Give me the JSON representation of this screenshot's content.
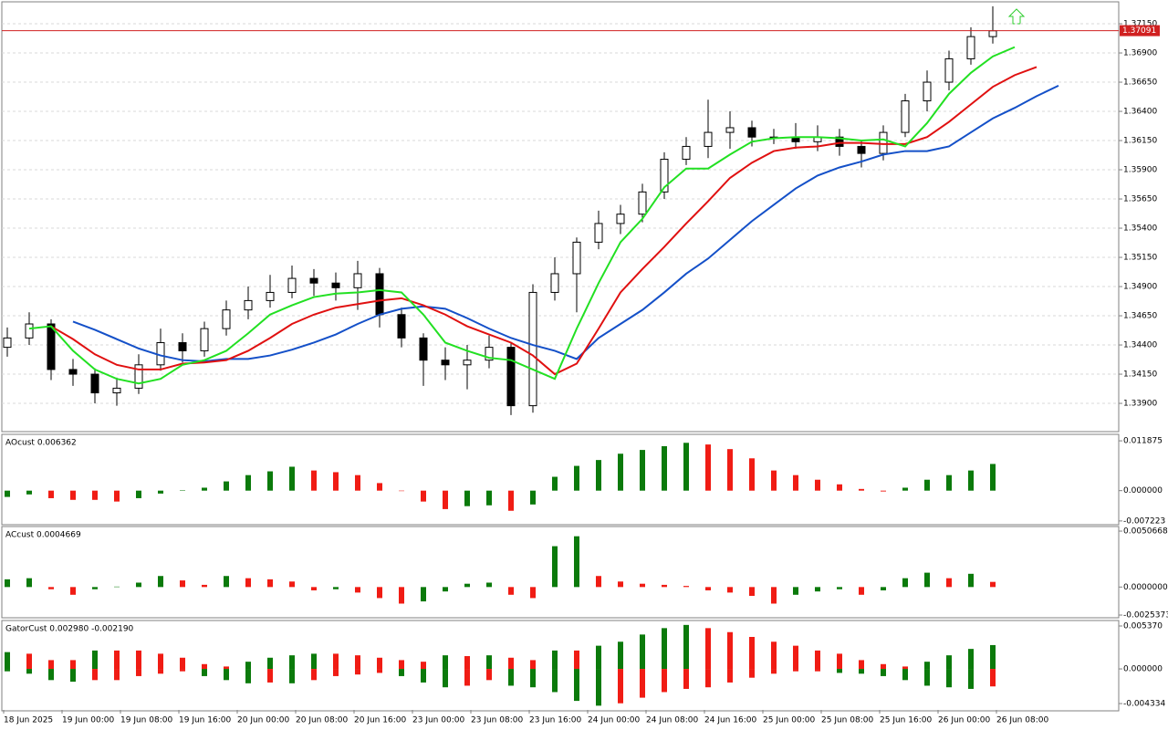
{
  "chart_data": [
    {
      "type": "candlestick",
      "open": [
        1.3438,
        1.3446,
        1.3458,
        1.3419,
        1.3415,
        1.3399,
        1.3403,
        1.3423,
        1.3442,
        1.3435,
        1.3454,
        1.347,
        1.3478,
        1.3485,
        1.3497,
        1.3493,
        1.3489,
        1.3501,
        1.3466,
        1.3446,
        1.3427,
        1.3423,
        1.3427,
        1.3438,
        1.3388,
        1.3485,
        1.3501,
        1.3528,
        1.3544,
        1.3552,
        1.3571,
        1.3599,
        1.361,
        1.3622,
        1.3626,
        1.3618,
        1.3618,
        1.3614,
        1.3618,
        1.361,
        1.3604,
        1.3622,
        1.3649,
        1.3665,
        1.3685,
        1.3704
      ],
      "high": [
        1.3455,
        1.3468,
        1.3462,
        1.3428,
        1.342,
        1.3412,
        1.3432,
        1.3454,
        1.345,
        1.346,
        1.3478,
        1.349,
        1.35,
        1.3508,
        1.3505,
        1.3502,
        1.3512,
        1.3506,
        1.3472,
        1.345,
        1.3438,
        1.344,
        1.3448,
        1.3442,
        1.3492,
        1.3515,
        1.3532,
        1.3555,
        1.356,
        1.3578,
        1.3605,
        1.3618,
        1.365,
        1.364,
        1.3632,
        1.3625,
        1.363,
        1.3628,
        1.3625,
        1.3615,
        1.3628,
        1.3655,
        1.3675,
        1.3692,
        1.3712,
        1.373
      ],
      "low": [
        1.343,
        1.344,
        1.341,
        1.3405,
        1.339,
        1.3388,
        1.3398,
        1.3418,
        1.3425,
        1.343,
        1.3448,
        1.3462,
        1.3472,
        1.348,
        1.3482,
        1.3478,
        1.347,
        1.3455,
        1.3438,
        1.3405,
        1.341,
        1.3402,
        1.342,
        1.338,
        1.3382,
        1.3478,
        1.3468,
        1.3522,
        1.3535,
        1.3545,
        1.3565,
        1.3594,
        1.36,
        1.3608,
        1.361,
        1.3612,
        1.3608,
        1.3606,
        1.3602,
        1.3592,
        1.3598,
        1.3618,
        1.364,
        1.3658,
        1.368,
        1.3698
      ],
      "close": [
        1.3446,
        1.3458,
        1.3419,
        1.3415,
        1.3399,
        1.3403,
        1.3423,
        1.3442,
        1.3435,
        1.3454,
        1.347,
        1.3478,
        1.3485,
        1.3497,
        1.3493,
        1.3489,
        1.3501,
        1.3466,
        1.3446,
        1.3427,
        1.3423,
        1.3427,
        1.3438,
        1.3388,
        1.3485,
        1.3501,
        1.3528,
        1.3544,
        1.3552,
        1.3571,
        1.3599,
        1.361,
        1.3622,
        1.3626,
        1.3618,
        1.3618,
        1.3614,
        1.3618,
        1.361,
        1.3604,
        1.3622,
        1.3649,
        1.3665,
        1.3685,
        1.3704,
        1.3709
      ],
      "up_color": "#ffffff",
      "down_color": "#000000",
      "series": [
        {
          "color": "#1450c8",
          "shift": 3,
          "values": [
            1.346,
            1.3453,
            1.3445,
            1.3437,
            1.3431,
            1.3427,
            1.3426,
            1.3428,
            1.3428,
            1.3431,
            1.3436,
            1.3442,
            1.3449,
            1.3458,
            1.3466,
            1.3471,
            1.3473,
            1.3471,
            1.3463,
            1.3454,
            1.3446,
            1.344,
            1.3435,
            1.3428,
            1.3446,
            1.3458,
            1.347,
            1.3485,
            1.3501,
            1.3514,
            1.353,
            1.3546,
            1.356,
            1.3574,
            1.3585,
            1.3592,
            1.3597,
            1.3603,
            1.3606,
            1.3606,
            1.361,
            1.3622,
            1.3634,
            1.3643,
            1.3653,
            1.3662
          ]
        },
        {
          "color": "#e01010",
          "shift": 2,
          "values": [
            1.3456,
            1.3445,
            1.3432,
            1.3423,
            1.3419,
            1.3419,
            1.3424,
            1.3425,
            1.3427,
            1.3435,
            1.3446,
            1.3458,
            1.3466,
            1.3472,
            1.3475,
            1.3478,
            1.348,
            1.3474,
            1.3466,
            1.3456,
            1.3449,
            1.3442,
            1.3431,
            1.3415,
            1.3424,
            1.3454,
            1.3485,
            1.3505,
            1.3524,
            1.3544,
            1.3563,
            1.3583,
            1.3596,
            1.3606,
            1.3609,
            1.361,
            1.3613,
            1.3613,
            1.3612,
            1.3612,
            1.3618,
            1.3631,
            1.3646,
            1.3661,
            1.3671,
            1.3678
          ]
        },
        {
          "color": "#22e022",
          "shift": 1,
          "values": [
            1.3454,
            1.3456,
            1.3435,
            1.3419,
            1.3411,
            1.3407,
            1.3411,
            1.3423,
            1.3427,
            1.3435,
            1.345,
            1.3466,
            1.3474,
            1.3481,
            1.3484,
            1.3485,
            1.3487,
            1.3485,
            1.3466,
            1.3442,
            1.3435,
            1.3429,
            1.3427,
            1.3419,
            1.3411,
            1.3454,
            1.3493,
            1.3528,
            1.3548,
            1.3575,
            1.3591,
            1.3591,
            1.3603,
            1.3614,
            1.3617,
            1.3618,
            1.3618,
            1.3617,
            1.3615,
            1.3616,
            1.361,
            1.363,
            1.3655,
            1.3673,
            1.3687,
            1.3695
          ]
        }
      ],
      "current_price": {
        "value": 1.37091,
        "label": "1.37091"
      },
      "ylim": [
        1.33666,
        1.3733
      ],
      "yticks": [
        {
          "value": 1.339,
          "label": "1.33900"
        },
        {
          "value": 1.3415,
          "label": "1.34150"
        },
        {
          "value": 1.344,
          "label": "1.34400"
        },
        {
          "value": 1.3465,
          "label": "1.34650"
        },
        {
          "value": 1.349,
          "label": "1.34900"
        },
        {
          "value": 1.3515,
          "label": "1.35150"
        },
        {
          "value": 1.354,
          "label": "1.35400"
        },
        {
          "value": 1.3565,
          "label": "1.35650"
        },
        {
          "value": 1.359,
          "label": "1.35900"
        },
        {
          "value": 1.3615,
          "label": "1.36150"
        },
        {
          "value": 1.364,
          "label": "1.36400"
        },
        {
          "value": 1.3665,
          "label": "1.36650"
        },
        {
          "value": 1.369,
          "label": "1.36900"
        },
        {
          "value": 1.3715,
          "label": "1.37150"
        }
      ],
      "grid": true,
      "x_labels": [
        "18 Jun 2025",
        "19 Jun 00:00",
        "19 Jun 08:00",
        "19 Jun 16:00",
        "20 Jun 00:00",
        "20 Jun 08:00",
        "20 Jun 16:00",
        "23 Jun 00:00",
        "23 Jun 08:00",
        "23 Jun 16:00",
        "24 Jun 00:00",
        "24 Jun 08:00",
        "24 Jun 16:00",
        "25 Jun 00:00",
        "25 Jun 08:00",
        "25 Jun 16:00",
        "26 Jun 00:00",
        "26 Jun 08:00"
      ]
    },
    {
      "type": "histogram",
      "title": "AOcust 0.006362",
      "up_color": "#0b7a0b",
      "down_color": "#f01c14",
      "values": [
        -0.0015,
        -0.0009,
        -0.0018,
        -0.0022,
        -0.0022,
        -0.0026,
        -0.0018,
        -0.0007,
        0.0001,
        0.0007,
        0.0022,
        0.0037,
        0.0046,
        0.0057,
        0.0048,
        0.0044,
        0.0037,
        0.0018,
        0,
        -0.0026,
        -0.0044,
        -0.0037,
        -0.0035,
        -0.0048,
        -0.0033,
        0.0033,
        0.0059,
        0.0073,
        0.0088,
        0.0097,
        0.0106,
        0.0114,
        0.011,
        0.0099,
        0.0077,
        0.0048,
        0.0037,
        0.0026,
        0.0015,
        0.0004,
        -0.0002,
        0.0007,
        0.0026,
        0.0037,
        0.0048,
        0.006362
      ],
      "ylim": [
        -0.0079,
        0.0132
      ],
      "yticks": [
        0.011875,
        {
          "value": 0,
          "label": "0.000000"
        },
        -0.007223
      ]
    },
    {
      "type": "histogram",
      "title": "ACcust 0.0004669",
      "up_color": "#0b7a0b",
      "down_color": "#f01c14",
      "values": [
        0.0007,
        0.0008,
        -0.0002,
        -0.0007,
        -0.0002,
        4e-05,
        0.0004,
        0.001,
        0.0006,
        0.0002,
        0.001,
        0.0008,
        0.0007,
        0.0005,
        -0.0003,
        -0.0002,
        -0.0005,
        -0.001,
        -0.0015,
        -0.0013,
        -0.0004,
        0.0003,
        0.0004,
        -0.0007,
        -0.001,
        0.0037,
        0.0046,
        0.001,
        0.0005,
        0.0003,
        0.0002,
        0.0001,
        -0.0003,
        -0.0005,
        -0.0008,
        -0.0015,
        -0.0007,
        -0.0004,
        -0.0002,
        -0.0007,
        -0.0003,
        0.0008,
        0.0013,
        0.0008,
        0.0012,
        0.0004669
      ],
      "ylim": [
        -0.0027,
        0.0054
      ],
      "yticks": [
        0.0050668,
        {
          "value": 0,
          "label": "0.0000000"
        },
        -0.0025373
      ]
    },
    {
      "type": "gator",
      "title": "GatorCust 0.002980 -0.002190",
      "up_color": "#0b7a0b",
      "down_color": "#f01c14",
      "upper": [
        0.0021,
        0.0019,
        0.0011,
        0.0011,
        0.0023,
        0.0023,
        0.0023,
        0.0019,
        0.0014,
        0.0006,
        0.0003,
        0.0009,
        0.0014,
        0.0017,
        0.0019,
        0.0019,
        0.0017,
        0.0014,
        0.0011,
        0.0009,
        0.0017,
        0.0016,
        0.0017,
        0.0014,
        0.0011,
        0.0023,
        0.0023,
        0.0029,
        0.0034,
        0.0043,
        0.0051,
        0.0055,
        0.0051,
        0.0046,
        0.004,
        0.0034,
        0.0029,
        0.0023,
        0.0019,
        0.0011,
        0.0006,
        0.0003,
        0.0009,
        0.0017,
        0.0025,
        0.00298
      ],
      "lower": [
        -0.0003,
        -0.0006,
        -0.0014,
        -0.0016,
        -0.0014,
        -0.0014,
        -0.0009,
        -0.0006,
        -0.0003,
        -0.0009,
        -0.0014,
        -0.0018,
        -0.0017,
        -0.0018,
        -0.0014,
        -0.0009,
        -0.0007,
        -0.0005,
        -0.0009,
        -0.0017,
        -0.0023,
        -0.0021,
        -0.0014,
        -0.0021,
        -0.0023,
        -0.0029,
        -0.004,
        -0.0046,
        -0.0043,
        -0.0036,
        -0.0029,
        -0.0025,
        -0.0023,
        -0.0017,
        -0.0011,
        -0.0006,
        -0.0003,
        -0.0003,
        -0.0005,
        -0.0006,
        -0.0009,
        -0.0014,
        -0.0021,
        -0.0023,
        -0.0025,
        -0.00219
      ],
      "ylim": [
        -0.00513,
        0.00594
      ],
      "yticks": [
        {
          "value": 0.00537,
          "label": "0.005370"
        },
        {
          "value": 0,
          "label": "0.000000"
        },
        -0.004334
      ]
    }
  ]
}
